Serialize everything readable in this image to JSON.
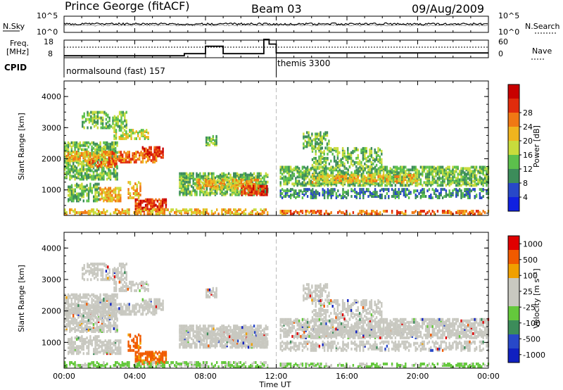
{
  "header": {
    "station": "Prince George (fitACF)",
    "beam": "Beam 03",
    "date": "09/Aug/2009"
  },
  "noise_panel": {
    "left_label": "N.Sky",
    "right_label": "N.Search",
    "left_ticks": [
      "10^5",
      "10^0"
    ],
    "right_ticks": [
      "10^5",
      "10^0"
    ]
  },
  "freq_panel": {
    "left_label_1": "Freq.",
    "left_label_2": "[MHz]",
    "right_label": "Nave",
    "left_ticks": [
      "18",
      "8"
    ],
    "right_ticks": [
      "60",
      "0"
    ]
  },
  "cpid": {
    "label": "CPID",
    "segments": [
      {
        "name": "normalsound (fast) 157",
        "start_hour": 0
      },
      {
        "name": "themis 3300",
        "start_hour": 12
      }
    ]
  },
  "time_axis": {
    "label": "Time UT",
    "ticks": [
      "00:00",
      "04:00",
      "08:00",
      "12:00",
      "16:00",
      "20:00",
      "00:00"
    ]
  },
  "colors": {
    "power": [
      "#1020e0",
      "#2848c8",
      "#3c8c5a",
      "#5cc04c",
      "#c8dc3c",
      "#f0b41e",
      "#f07814",
      "#e02c0c",
      "#c80000"
    ],
    "velocity": [
      "#e00000",
      "#f05a00",
      "#f0a000",
      "#c8c8c0",
      "#c8c8c0",
      "#64c83c",
      "#3c8c5a",
      "#2848c8",
      "#1020c0"
    ]
  },
  "chart_data": [
    {
      "type": "heatmap",
      "name": "power",
      "ylabel": "Slant Range [km]",
      "xlabel": "",
      "xlim": [
        0,
        24
      ],
      "ylim": [
        180,
        4500
      ],
      "yticks": [
        "1000",
        "2000",
        "3000",
        "4000"
      ],
      "colorbar_label": "Power [dB]",
      "colorbar_ticks": [
        "4",
        "8",
        "12",
        "16",
        "20",
        "24",
        "28"
      ],
      "vrange": [
        0,
        30
      ]
    },
    {
      "type": "heatmap",
      "name": "velocity",
      "ylabel": "Slant Range [km]",
      "xlabel": "Time UT",
      "xlim": [
        0,
        24
      ],
      "ylim": [
        180,
        4500
      ],
      "yticks": [
        "1000",
        "2000",
        "3000",
        "4000"
      ],
      "colorbar_label": "Velocity [m s⁻¹]",
      "colorbar_ticks": [
        "1000",
        "500",
        "100",
        "25",
        "-25",
        "-100",
        "-500",
        "-1000"
      ]
    },
    {
      "type": "line",
      "name": "frequency",
      "ylabel": "Freq. [MHz]",
      "ylim": [
        8,
        18
      ],
      "series": [
        {
          "x": [
            0,
            6.8,
            6.8,
            8.0,
            8.0,
            9.0,
            9.0,
            11.3,
            11.3,
            11.6,
            11.6,
            12.0,
            12.0,
            24
          ],
          "values": [
            8.4,
            8.4,
            9.8,
            9.8,
            14.8,
            14.8,
            9.8,
            9.8,
            19.5,
            19.5,
            16.3,
            16.3,
            10.3,
            10.3
          ]
        }
      ]
    }
  ]
}
